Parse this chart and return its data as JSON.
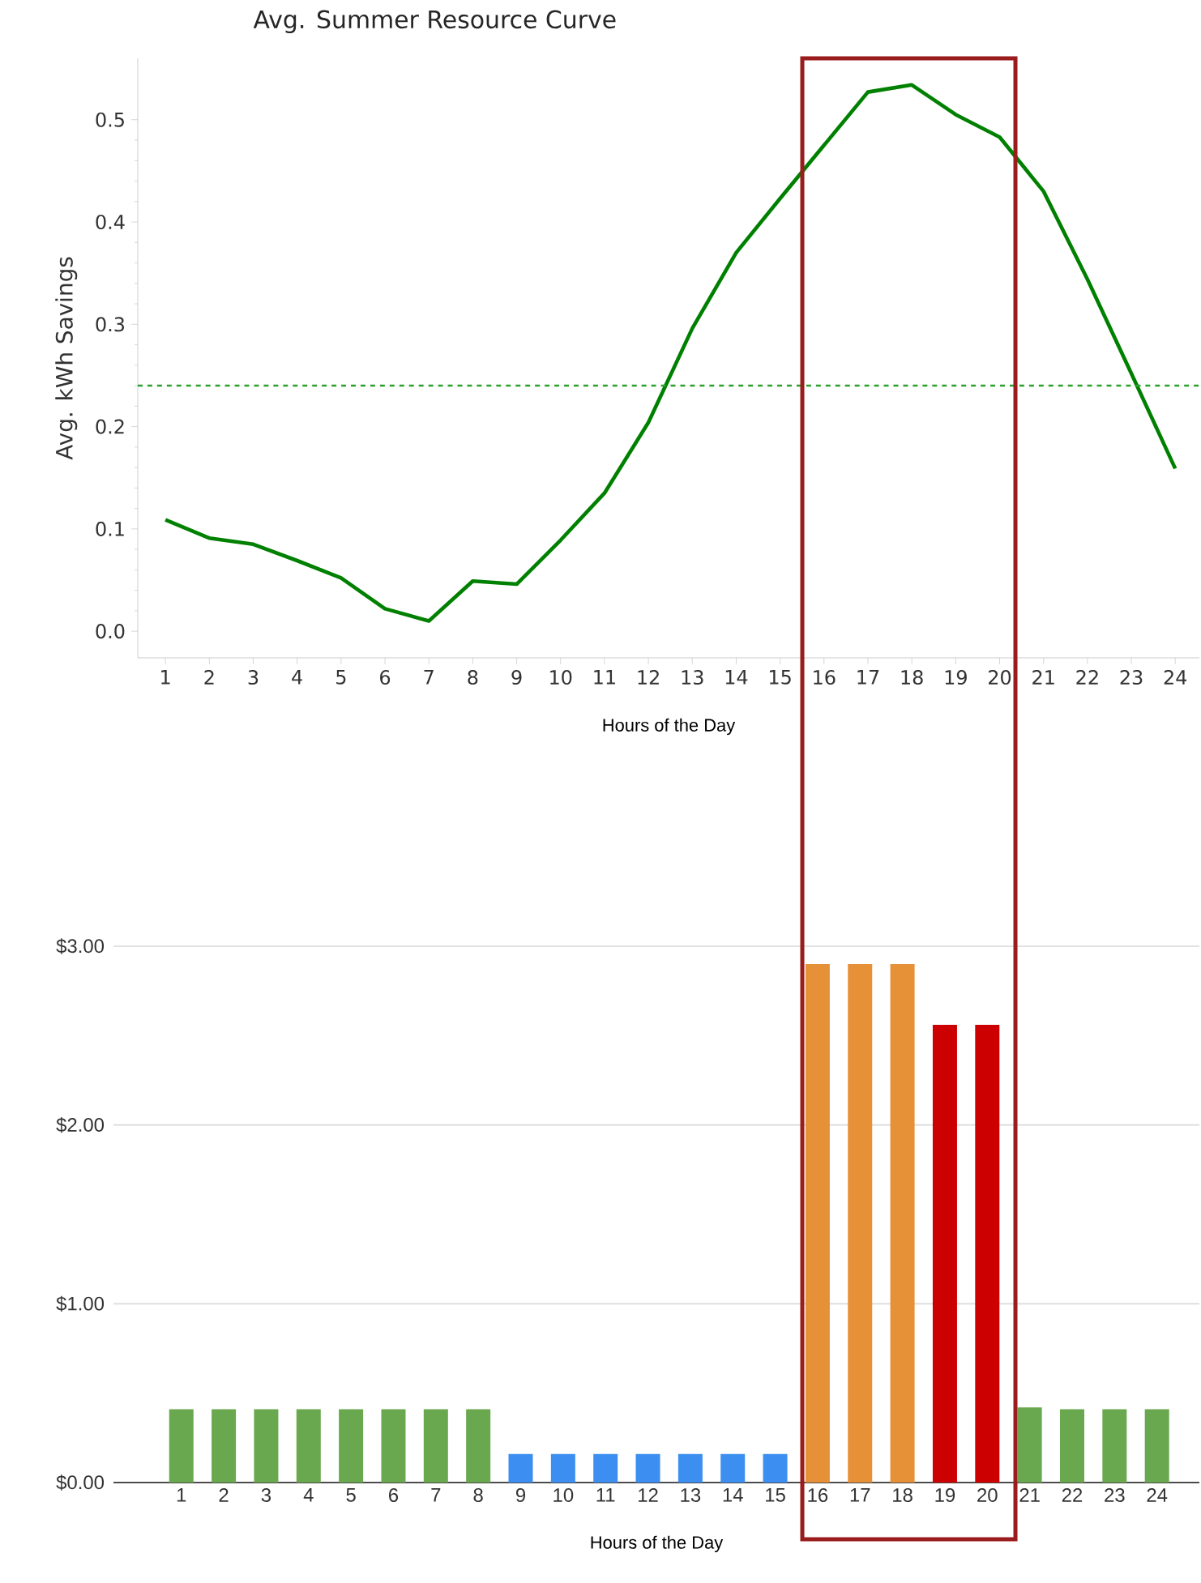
{
  "chart_data": [
    {
      "type": "line",
      "title": "Avg. Summer Resource Curve",
      "xlabel": "Hours of the Day",
      "ylabel": "Avg. kWh Savings",
      "color": "#008000",
      "x": [
        1,
        2,
        3,
        4,
        5,
        6,
        7,
        8,
        9,
        10,
        11,
        12,
        13,
        14,
        15,
        16,
        17,
        18,
        19,
        20,
        21,
        22,
        23,
        24
      ],
      "values": [
        0.109,
        0.091,
        0.085,
        0.069,
        0.052,
        0.022,
        0.01,
        0.049,
        0.046,
        0.089,
        0.135,
        0.204,
        0.296,
        0.37,
        0.423,
        0.475,
        0.527,
        0.534,
        0.505,
        0.483,
        0.43,
        0.344,
        0.252,
        0.159
      ],
      "xlim": [
        0.37,
        24.55
      ],
      "ylim": [
        -0.026,
        0.56
      ],
      "xticks": [
        1,
        2,
        3,
        4,
        5,
        6,
        7,
        8,
        9,
        10,
        11,
        12,
        13,
        14,
        15,
        16,
        17,
        18,
        19,
        20,
        21,
        22,
        23,
        24
      ],
      "yticks": [
        {
          "value": 0,
          "label": "0.0"
        },
        0.1,
        0.2,
        0.3,
        0.4,
        0.5
      ],
      "ref_lines": [
        {
          "axis": "y",
          "value": 0.24,
          "color": "#2ca02c",
          "line_style": "dashed"
        }
      ]
    },
    {
      "type": "bar",
      "xlabel": "Hours of the Day",
      "grid": "y",
      "categories": [
        "1",
        "2",
        "3",
        "4",
        "5",
        "6",
        "7",
        "8",
        "9",
        "10",
        "11",
        "12",
        "13",
        "14",
        "15",
        "16",
        "17",
        "18",
        "19",
        "20",
        "21",
        "22",
        "23",
        "24"
      ],
      "values": [
        0.41,
        0.41,
        0.41,
        0.41,
        0.41,
        0.41,
        0.41,
        0.41,
        0.16,
        0.16,
        0.16,
        0.16,
        0.16,
        0.16,
        0.16,
        2.9,
        2.9,
        2.9,
        2.56,
        2.56,
        0.42,
        0.41,
        0.41,
        0.41
      ],
      "colors": [
        "#6aa84f",
        "#6aa84f",
        "#6aa84f",
        "#6aa84f",
        "#6aa84f",
        "#6aa84f",
        "#6aa84f",
        "#6aa84f",
        "#3c8ef0",
        "#3c8ef0",
        "#3c8ef0",
        "#3c8ef0",
        "#3c8ef0",
        "#3c8ef0",
        "#3c8ef0",
        "#e69138",
        "#e69138",
        "#e69138",
        "#cc0000",
        "#cc0000",
        "#6aa84f",
        "#6aa84f",
        "#6aa84f",
        "#6aa84f"
      ],
      "ylim": [
        0,
        3
      ],
      "yticks": [
        {
          "value": 0,
          "label": "$0.00"
        },
        {
          "value": 1,
          "label": "$1.00"
        },
        {
          "value": 2,
          "label": "$2.00"
        },
        {
          "value": 3,
          "label": "$3.00"
        }
      ]
    }
  ]
}
